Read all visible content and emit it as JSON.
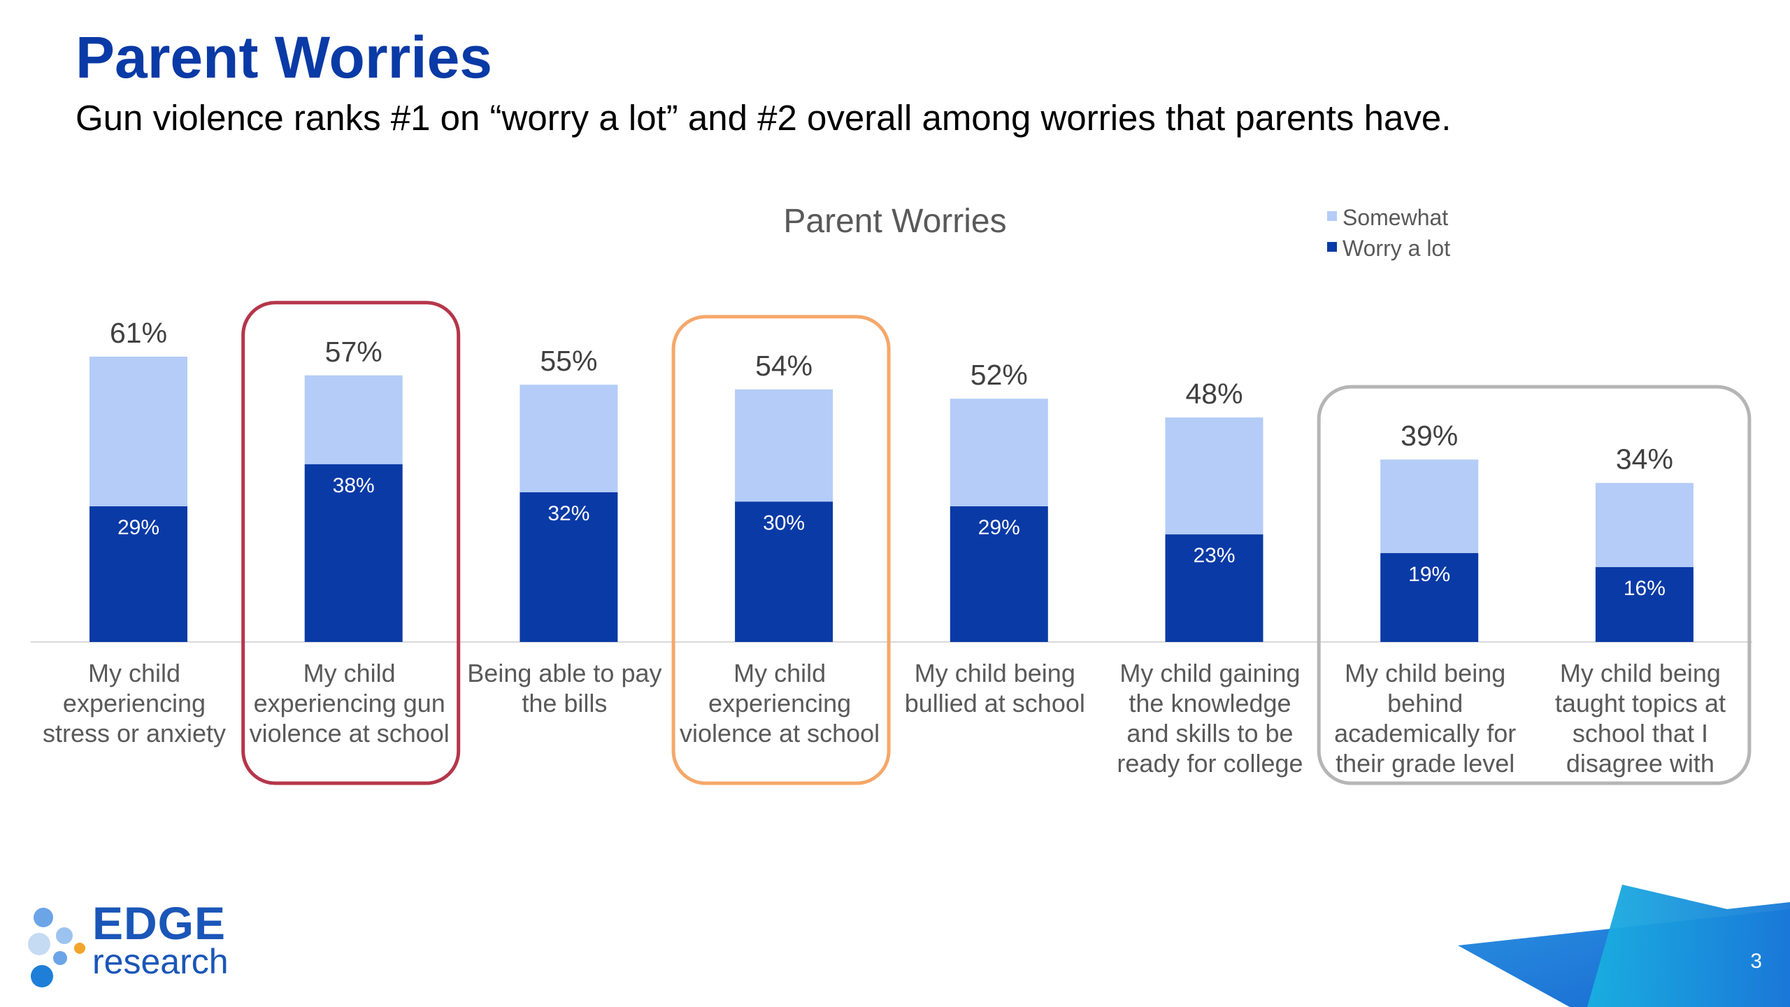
{
  "slide": {
    "title": "Parent Worries",
    "subtitle": "Gun violence ranks #1 on “worry a lot” and #2 overall among worries that parents have.",
    "page_number": "3"
  },
  "logo": {
    "line1": "EDGE",
    "line2": "research"
  },
  "colors": {
    "title": "#0a3aa6",
    "worry_a_lot": "#0a3aa6",
    "somewhat": "#b4ccf7",
    "highlight_red": "#b5364a",
    "highlight_orange": "#f4a86a",
    "highlight_gray": "#b5b5b5"
  },
  "chart_data": {
    "type": "bar",
    "stacked": true,
    "title": "Parent Worries",
    "legend_position": "top-right",
    "categories": [
      "My child experiencing stress or anxiety",
      "My child experiencing gun violence at school",
      "Being able to pay the bills",
      "My child experiencing violence at school",
      "My child being bullied at school",
      "My child gaining the knowledge and skills to be ready for college",
      "My child being behind academically for their grade level",
      "My child being taught topics at school that I disagree with"
    ],
    "category_lines": [
      [
        "My child",
        "experiencing",
        "stress or anxiety"
      ],
      [
        "My child",
        "experiencing gun",
        "violence at school"
      ],
      [
        "Being able to pay",
        "the bills"
      ],
      [
        "My child",
        "experiencing",
        "violence at school"
      ],
      [
        "My child being",
        "bullied at school"
      ],
      [
        "My child gaining",
        "the knowledge",
        "and skills to be",
        "ready for college"
      ],
      [
        "My child being",
        "behind",
        "academically for",
        "their grade level"
      ],
      [
        "My child being",
        "taught topics at",
        "school that I",
        "disagree with"
      ]
    ],
    "series": [
      {
        "name": "Worry a lot",
        "values": [
          29,
          38,
          32,
          30,
          29,
          23,
          19,
          16
        ]
      },
      {
        "name": "Somewhat",
        "values": [
          32,
          19,
          23,
          24,
          23,
          25,
          20,
          18
        ]
      }
    ],
    "totals": [
      61,
      57,
      55,
      54,
      52,
      48,
      39,
      34
    ],
    "total_labels": [
      "61%",
      "57%",
      "55%",
      "54%",
      "52%",
      "48%",
      "39%",
      "34%"
    ],
    "inner_labels": [
      "29%",
      "38%",
      "32%",
      "30%",
      "29%",
      "23%",
      "19%",
      "16%"
    ],
    "legend": [
      "Somewhat",
      "Worry a lot"
    ],
    "ylim": [
      0,
      61
    ],
    "grid": false,
    "highlights": [
      {
        "categories": [
          1
        ],
        "color": "red"
      },
      {
        "categories": [
          3
        ],
        "color": "orange"
      },
      {
        "categories": [
          6,
          7
        ],
        "color": "gray"
      }
    ]
  }
}
